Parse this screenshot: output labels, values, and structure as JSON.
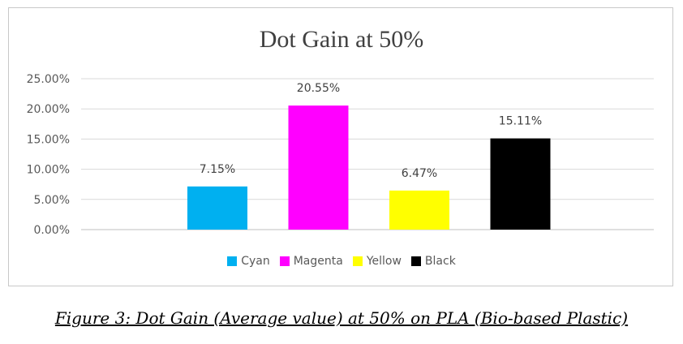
{
  "chart_data": {
    "type": "bar",
    "title": "Dot Gain at 50%",
    "categories": [
      "Cyan",
      "Magenta",
      "Yellow",
      "Black"
    ],
    "values": [
      7.15,
      20.55,
      6.47,
      15.11
    ],
    "value_labels": [
      "7.15%",
      "20.55%",
      "6.47%",
      "15.11%"
    ],
    "colors": [
      "#00b0f0",
      "#ff00ff",
      "#ffff00",
      "#000000"
    ],
    "ylim": [
      0,
      25
    ],
    "yticks": [
      "0.00%",
      "5.00%",
      "10.00%",
      "15.00%",
      "20.00%",
      "25.00%"
    ],
    "ytick_values": [
      0,
      5,
      10,
      15,
      20,
      25
    ],
    "grid": true,
    "legend_position": "bottom"
  },
  "caption": "Figure 3: Dot Gain (Average value) at 50% on PLA (Bio-based Plastic)"
}
